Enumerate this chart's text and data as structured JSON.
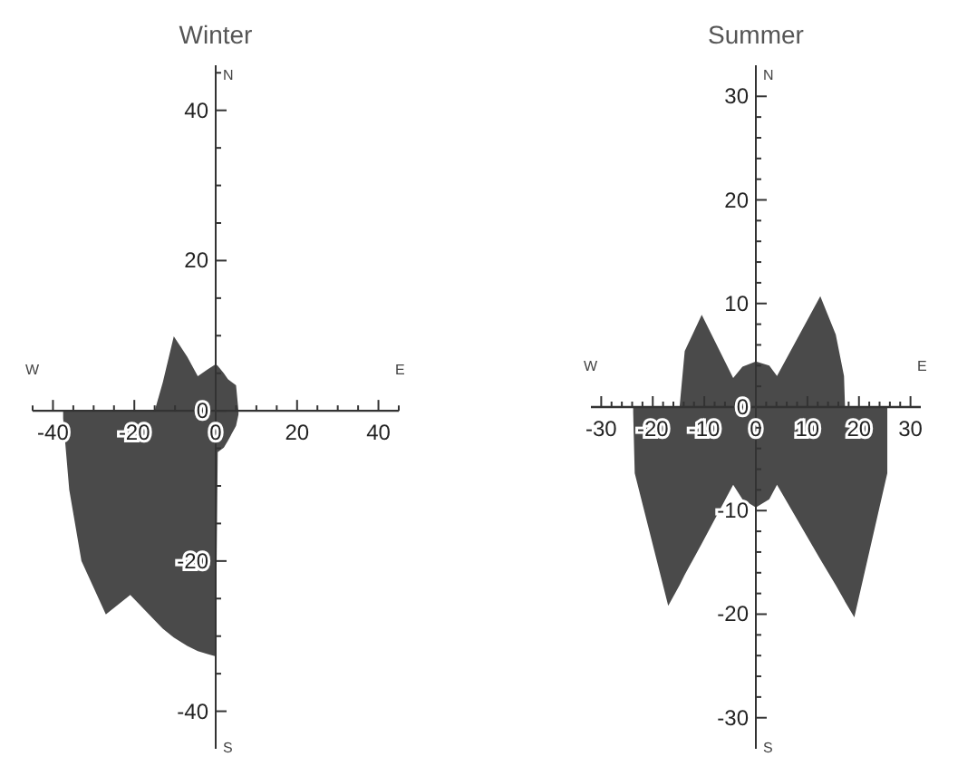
{
  "chart_data": [
    {
      "type": "area",
      "title": "Winter",
      "xlim": [
        -45,
        45
      ],
      "ylim": [
        -45,
        46
      ],
      "xticks": [
        {
          "value": -45,
          "label": null
        },
        -40,
        {
          "value": -35,
          "label": null
        },
        {
          "value": -30,
          "label": null
        },
        {
          "value": -25,
          "label": null
        },
        -20,
        {
          "value": -15,
          "label": null
        },
        {
          "value": -10,
          "label": null
        },
        {
          "value": -5,
          "label": null
        },
        0,
        {
          "value": 5,
          "label": null
        },
        {
          "value": 10,
          "label": null
        },
        {
          "value": 15,
          "label": null
        },
        20,
        {
          "value": 25,
          "label": null
        },
        {
          "value": 30,
          "label": null
        },
        {
          "value": 35,
          "label": null
        },
        40,
        {
          "value": 45,
          "label": null
        }
      ],
      "yticks": [
        -40,
        {
          "value": -35,
          "label": null
        },
        {
          "value": -30,
          "label": null
        },
        {
          "value": -25,
          "label": null
        },
        -20,
        {
          "value": -15,
          "label": null
        },
        {
          "value": -10,
          "label": null
        },
        {
          "value": -5,
          "label": null
        },
        0,
        {
          "value": 5,
          "label": null
        },
        {
          "value": 10,
          "label": null
        },
        {
          "value": 15,
          "label": null
        },
        20,
        {
          "value": 25,
          "label": null
        },
        {
          "value": 30,
          "label": null
        },
        {
          "value": 35,
          "label": null
        },
        40,
        {
          "value": 45,
          "label": null
        }
      ],
      "annotations": [
        "N",
        "S",
        "W",
        "E"
      ],
      "series": [
        {
          "color": "#4a4a4a",
          "x": [
            -15,
            -13,
            -10.3,
            -7,
            -4.4,
            -2,
            0,
            0.5,
            2,
            3,
            5,
            5.6
          ],
          "values": [
            0,
            3.8,
            9.9,
            7.2,
            4.6,
            5.5,
            6.2,
            6,
            5,
            4.2,
            3.4,
            0
          ]
        },
        {
          "color": "#4a4a4a",
          "x": [
            -37.5,
            -36,
            -33,
            -27,
            -21,
            -15,
            -13,
            -10.3,
            -7,
            -4.4,
            -2,
            0,
            0.5,
            2,
            3,
            5,
            5.6
          ],
          "values": [
            -1,
            -10.5,
            -20,
            -27.1,
            -24.5,
            -27.9,
            -29,
            -30.2,
            -31.3,
            -32,
            -32.4,
            -32.7,
            -5.5,
            -4.9,
            -4,
            -2,
            -0.5
          ]
        }
      ]
    },
    {
      "type": "area",
      "title": "Summer",
      "xlim": [
        -32,
        32
      ],
      "ylim": [
        -33,
        33
      ],
      "xticks": [
        -30,
        {
          "value": -28,
          "label": null
        },
        {
          "value": -26,
          "label": null
        },
        {
          "value": -24,
          "label": null
        },
        {
          "value": -22,
          "label": null
        },
        -20,
        {
          "value": -18,
          "label": null
        },
        {
          "value": -16,
          "label": null
        },
        {
          "value": -14,
          "label": null
        },
        {
          "value": -12,
          "label": null
        },
        -10,
        {
          "value": -8,
          "label": null
        },
        {
          "value": -6,
          "label": null
        },
        {
          "value": -4,
          "label": null
        },
        {
          "value": -2,
          "label": null
        },
        0,
        {
          "value": 2,
          "label": null
        },
        {
          "value": 4,
          "label": null
        },
        {
          "value": 6,
          "label": null
        },
        {
          "value": 8,
          "label": null
        },
        10,
        {
          "value": 12,
          "label": null
        },
        {
          "value": 14,
          "label": null
        },
        {
          "value": 16,
          "label": null
        },
        {
          "value": 18,
          "label": null
        },
        20,
        {
          "value": 22,
          "label": null
        },
        {
          "value": 24,
          "label": null
        },
        {
          "value": 26,
          "label": null
        },
        {
          "value": 28,
          "label": null
        },
        30
      ],
      "yticks": [
        -30,
        {
          "value": -28,
          "label": null
        },
        {
          "value": -26,
          "label": null
        },
        {
          "value": -24,
          "label": null
        },
        {
          "value": -22,
          "label": null
        },
        -20,
        {
          "value": -18,
          "label": null
        },
        {
          "value": -16,
          "label": null
        },
        {
          "value": -14,
          "label": null
        },
        {
          "value": -12,
          "label": null
        },
        -10,
        {
          "value": -8,
          "label": null
        },
        {
          "value": -6,
          "label": null
        },
        {
          "value": -4,
          "label": null
        },
        {
          "value": -2,
          "label": null
        },
        0,
        {
          "value": 2,
          "label": null
        },
        {
          "value": 4,
          "label": null
        },
        {
          "value": 6,
          "label": null
        },
        {
          "value": 8,
          "label": null
        },
        10,
        {
          "value": 12,
          "label": null
        },
        {
          "value": 14,
          "label": null
        },
        {
          "value": 16,
          "label": null
        },
        {
          "value": 18,
          "label": null
        },
        20,
        {
          "value": 22,
          "label": null
        },
        {
          "value": 24,
          "label": null
        },
        {
          "value": 26,
          "label": null
        },
        {
          "value": 28,
          "label": null
        },
        30
      ],
      "annotations": [
        "N",
        "S",
        "W",
        "E"
      ],
      "series": [
        {
          "color": "#4a4a4a",
          "x": [
            -14.8,
            -13.8,
            -10.5,
            -4.4,
            -2.6,
            0,
            2.6,
            4.1,
            12.5,
            15.5,
            17.1,
            17.3
          ],
          "values": [
            0,
            5.4,
            8.9,
            2.8,
            3.9,
            4.4,
            4,
            3,
            10.7,
            7,
            3,
            0
          ]
        },
        {
          "color": "#4a4a4a",
          "x": [
            -23.8,
            -23.5,
            -17,
            -14.8,
            -13.8,
            -10.5,
            -4.4,
            -2.6,
            0,
            2.6,
            4.1,
            12.5,
            15.5,
            17.1,
            17.3,
            19.1,
            25.5
          ],
          "values": [
            -0.5,
            -6.4,
            -19.2,
            -17.2,
            -16.2,
            -13.2,
            -7.5,
            -8.9,
            -9.7,
            -8.9,
            -7.5,
            -14.7,
            -17.2,
            -18.6,
            -18.8,
            -20.3,
            -6.4
          ]
        }
      ]
    }
  ]
}
